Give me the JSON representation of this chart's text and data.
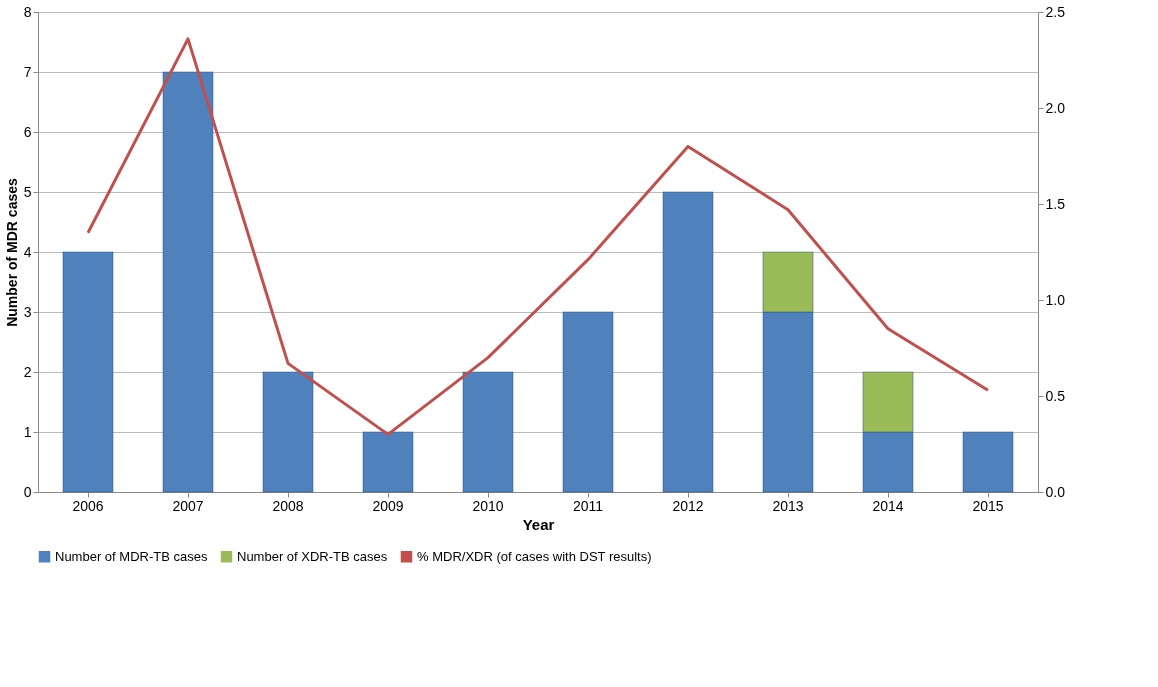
{
  "chart_data": {
    "type": "bar",
    "stacked": true,
    "xlabel": "Year",
    "ylabel": "Number of MDR cases",
    "categories": [
      "2006",
      "2007",
      "2008",
      "2009",
      "2010",
      "2011",
      "2012",
      "2013",
      "2014",
      "2015"
    ],
    "series": [
      {
        "name": "Number of MDR-TB cases",
        "color": "#4f81bd",
        "values": [
          4,
          7,
          2,
          1,
          2,
          3,
          5,
          3,
          1,
          1
        ]
      },
      {
        "name": "Number of XDR-TB cases",
        "color": "#9bbb59",
        "values": [
          null,
          null,
          null,
          null,
          null,
          null,
          null,
          1,
          1,
          null
        ]
      },
      {
        "name": "% MDR/XDR (of cases with DST results)",
        "color": "#c0504d",
        "type": "line",
        "axis": "y2",
        "values": [
          1.35,
          2.36,
          0.67,
          0.3,
          0.7,
          1.21,
          1.8,
          1.47,
          0.85,
          0.53
        ]
      }
    ],
    "ylim": [
      0,
      8
    ],
    "yticks": [
      0,
      1,
      2,
      3,
      4,
      5,
      6,
      7,
      8
    ],
    "y2lim": [
      0,
      2.5
    ],
    "y2ticks": [
      {
        "value": 0,
        "label": "0.0"
      },
      {
        "value": 0.5,
        "label": "0.5"
      },
      {
        "value": 1,
        "label": "1.0"
      },
      {
        "value": 1.5,
        "label": "1.5"
      },
      {
        "value": 2,
        "label": "2.0"
      },
      {
        "value": 2.5,
        "label": "2.5"
      }
    ],
    "grid": "y",
    "legend": "bottom",
    "marker": "none",
    "line_style": "solid"
  }
}
